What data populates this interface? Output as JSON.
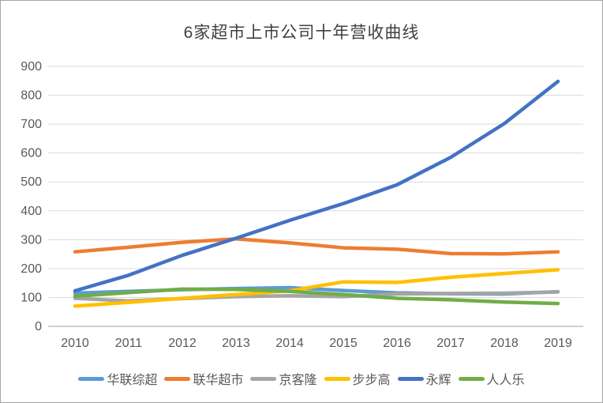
{
  "window": {
    "background": "#ffffff",
    "border_color": "#a6a6a6"
  },
  "style": {
    "gridline_color": "#d9d9d9",
    "axis_line_color": "#bfbfbf",
    "tick_label_color": "#595959",
    "title_color": "#404040",
    "line_width": 4.5
  },
  "chart_data": {
    "type": "line",
    "title": "6家超市上市公司十年营收曲线",
    "xlabel": "",
    "ylabel": "",
    "grid": true,
    "legend_position": "bottom",
    "ylim": [
      0,
      900
    ],
    "ytick_step": 100,
    "ytick_labels": [
      "0",
      "100",
      "200",
      "300",
      "400",
      "500",
      "600",
      "700",
      "800",
      "900"
    ],
    "categories": [
      "2010",
      "2011",
      "2012",
      "2013",
      "2014",
      "2015",
      "2016",
      "2017",
      "2018",
      "2019"
    ],
    "series": [
      {
        "name": "华联综超",
        "color": "#5B9BD5",
        "values": [
          115,
          121,
          127,
          131,
          134,
          124,
          116,
          113,
          112,
          120
        ]
      },
      {
        "name": "联华超市",
        "color": "#ED7D31",
        "values": [
          258,
          274,
          291,
          303,
          289,
          272,
          267,
          252,
          251,
          258
        ]
      },
      {
        "name": "京客隆",
        "color": "#A5A5A5",
        "values": [
          97,
          88,
          96,
          103,
          106,
          103,
          112,
          114,
          115,
          119
        ]
      },
      {
        "name": "步步高",
        "color": "#FFC000",
        "values": [
          70,
          83,
          97,
          110,
          123,
          154,
          152,
          170,
          183,
          196
        ]
      },
      {
        "name": "永辉",
        "color": "#4472C4",
        "values": [
          123,
          177,
          246,
          305,
          367,
          425,
          490,
          585,
          702,
          848
        ]
      },
      {
        "name": "人人乐",
        "color": "#70AD47",
        "values": [
          104,
          117,
          129,
          128,
          121,
          110,
          97,
          92,
          84,
          79
        ]
      }
    ]
  }
}
